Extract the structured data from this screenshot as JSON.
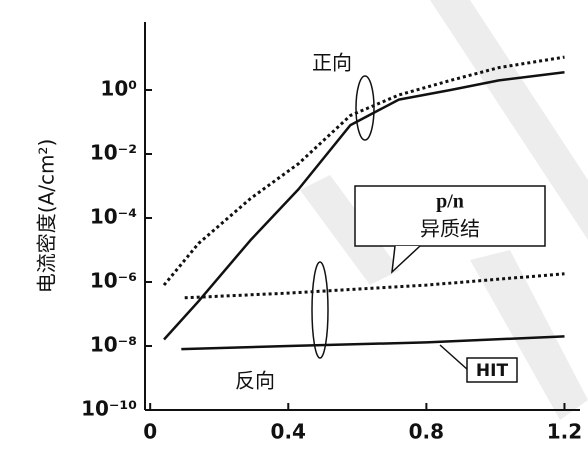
{
  "chart_data": {
    "type": "line",
    "y_label": "电流密度(A/cm²)",
    "log_y": true,
    "xlim": [
      -0.015,
      1.245
    ],
    "xticks": [
      0,
      0.4,
      0.8,
      1.2
    ],
    "ylim": [
      1e-10,
      100
    ],
    "yticks": [
      {
        "value": 1,
        "label": "10⁰"
      },
      {
        "value": 0.01,
        "label": "10⁻²"
      },
      {
        "value": 0.0001,
        "label": "10⁻⁴"
      },
      {
        "value": 1e-06,
        "label": "10⁻⁶"
      },
      {
        "value": 1e-08,
        "label": "10⁻⁸"
      },
      {
        "value": 1e-10,
        "label": "10⁻¹⁰"
      }
    ],
    "annotations": {
      "forward": "正向",
      "reverse": "反向",
      "pn_line1": "p/n",
      "pn_line2": "异质结",
      "hit": "HIT"
    },
    "series": [
      {
        "color": "#111111",
        "style": "solid",
        "x": [
          0.04,
          0.14,
          0.29,
          0.43,
          0.58,
          0.72,
          0.87,
          1.01,
          1.2
        ],
        "values": [
          1.6e-08,
          2.5e-07,
          2e-05,
          0.0008,
          0.08,
          0.5,
          1,
          2,
          3.6
        ]
      },
      {
        "color": "#111111",
        "style": "dotted",
        "x": [
          0.04,
          0.14,
          0.29,
          0.43,
          0.58,
          0.72,
          0.87,
          1.01,
          1.2
        ],
        "values": [
          8e-07,
          1.6e-05,
          0.0004,
          0.005,
          0.16,
          0.7,
          2,
          5,
          10.7
        ]
      },
      {
        "color": "#111111",
        "style": "dotted",
        "x": [
          0.1,
          0.4,
          0.8,
          1.2
        ],
        "values": [
          3.2e-07,
          4.5e-07,
          8e-07,
          1.8e-06
        ]
      },
      {
        "color": "#111111",
        "style": "solid",
        "x": [
          0.09,
          0.4,
          0.8,
          1.2
        ],
        "values": [
          8e-09,
          1e-08,
          1.3e-08,
          2e-08
        ]
      }
    ]
  }
}
